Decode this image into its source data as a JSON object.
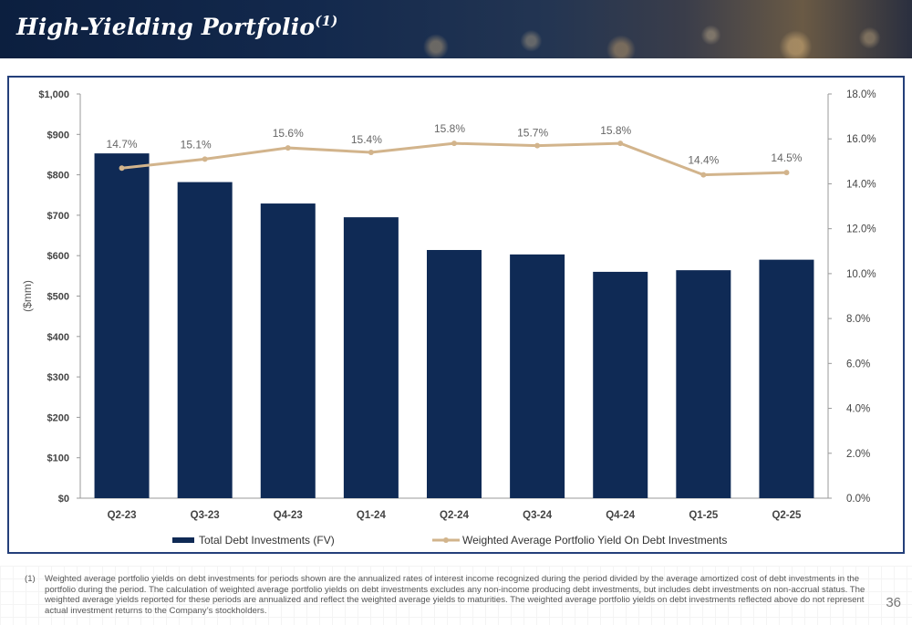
{
  "header": {
    "title": "High-Yielding Portfolio",
    "title_superscript": "(1)"
  },
  "colors": {
    "bar": "#0f2a55",
    "line": "#d2b48c",
    "frame": "#243f7a",
    "header_bg": "#0c1f3f"
  },
  "chart_data": {
    "type": "bar",
    "categories": [
      "Q2-23",
      "Q3-23",
      "Q4-23",
      "Q1-24",
      "Q2-24",
      "Q3-24",
      "Q4-24",
      "Q1-25",
      "Q2-25"
    ],
    "series": [
      {
        "name": "Total Debt Investments (FV)",
        "type": "bar",
        "axis": "left",
        "values": [
          853,
          782,
          729,
          695,
          614,
          603,
          560,
          564,
          590
        ]
      },
      {
        "name": "Weighted Average Portfolio Yield On Debt Investments",
        "type": "line",
        "axis": "right",
        "values": [
          14.7,
          15.1,
          15.6,
          15.4,
          15.8,
          15.7,
          15.8,
          14.4,
          14.5
        ],
        "labels": [
          "14.7%",
          "15.1%",
          "15.6%",
          "15.4%",
          "15.8%",
          "15.7%",
          "15.8%",
          "14.4%",
          "14.5%"
        ]
      }
    ],
    "ylabel": "($mm)",
    "ylim": [
      0,
      1000
    ],
    "y_ticks": [
      "$0",
      "$100",
      "$200",
      "$300",
      "$400",
      "$500",
      "$600",
      "$700",
      "$800",
      "$900",
      "$1,000"
    ],
    "y2lim": [
      0,
      18
    ],
    "y2_ticks": [
      "0.0%",
      "2.0%",
      "4.0%",
      "6.0%",
      "8.0%",
      "10.0%",
      "12.0%",
      "14.0%",
      "16.0%",
      "18.0%"
    ],
    "grid": false,
    "legend": "bottom"
  },
  "footnote": {
    "marker": "(1)",
    "text": "Weighted average portfolio yields on debt investments for periods shown are the annualized rates of interest income recognized during the period divided by the average amortized cost of debt investments in the portfolio during the period. The calculation of weighted average portfolio yields on debt investments excludes any non-income producing debt investments, but includes debt investments on non-accrual status. The weighted average yields reported for these periods are annualized and reflect the weighted average yields to maturities. The weighted average portfolio yields on debt investments reflected above do not represent actual investment returns to the Company’s stockholders."
  },
  "page_number": "36"
}
